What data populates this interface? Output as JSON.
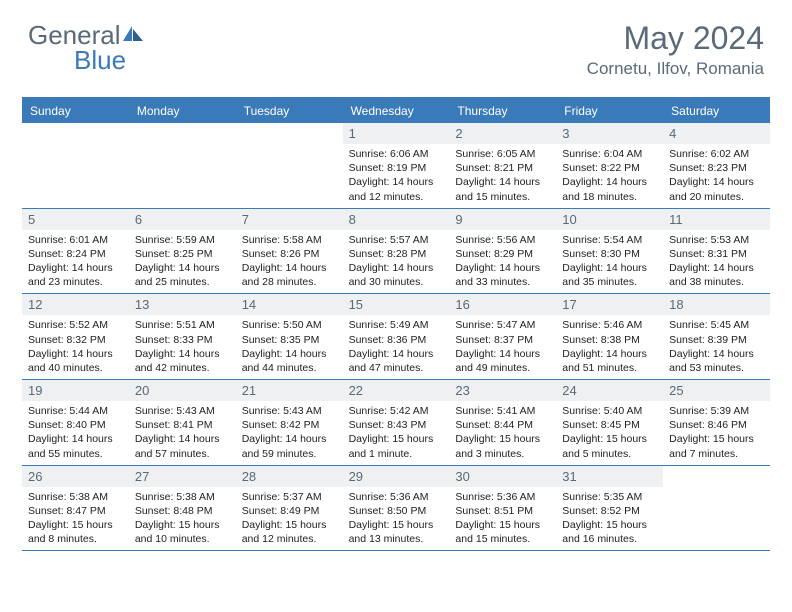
{
  "logo": {
    "general": "General",
    "blue": "Blue"
  },
  "title": "May 2024",
  "location": "Cornetu, Ilfov, Romania",
  "colors": {
    "brand_blue": "#3a7ab8",
    "header_text": "#5a6a78",
    "cell_num_bg": "#eef0f2",
    "body_text": "#222222",
    "white": "#ffffff"
  },
  "day_headers": [
    "Sunday",
    "Monday",
    "Tuesday",
    "Wednesday",
    "Thursday",
    "Friday",
    "Saturday"
  ],
  "weeks": [
    [
      null,
      null,
      null,
      {
        "n": "1",
        "sr": "Sunrise: 6:06 AM",
        "ss": "Sunset: 8:19 PM",
        "d1": "Daylight: 14 hours",
        "d2": "and 12 minutes."
      },
      {
        "n": "2",
        "sr": "Sunrise: 6:05 AM",
        "ss": "Sunset: 8:21 PM",
        "d1": "Daylight: 14 hours",
        "d2": "and 15 minutes."
      },
      {
        "n": "3",
        "sr": "Sunrise: 6:04 AM",
        "ss": "Sunset: 8:22 PM",
        "d1": "Daylight: 14 hours",
        "d2": "and 18 minutes."
      },
      {
        "n": "4",
        "sr": "Sunrise: 6:02 AM",
        "ss": "Sunset: 8:23 PM",
        "d1": "Daylight: 14 hours",
        "d2": "and 20 minutes."
      }
    ],
    [
      {
        "n": "5",
        "sr": "Sunrise: 6:01 AM",
        "ss": "Sunset: 8:24 PM",
        "d1": "Daylight: 14 hours",
        "d2": "and 23 minutes."
      },
      {
        "n": "6",
        "sr": "Sunrise: 5:59 AM",
        "ss": "Sunset: 8:25 PM",
        "d1": "Daylight: 14 hours",
        "d2": "and 25 minutes."
      },
      {
        "n": "7",
        "sr": "Sunrise: 5:58 AM",
        "ss": "Sunset: 8:26 PM",
        "d1": "Daylight: 14 hours",
        "d2": "and 28 minutes."
      },
      {
        "n": "8",
        "sr": "Sunrise: 5:57 AM",
        "ss": "Sunset: 8:28 PM",
        "d1": "Daylight: 14 hours",
        "d2": "and 30 minutes."
      },
      {
        "n": "9",
        "sr": "Sunrise: 5:56 AM",
        "ss": "Sunset: 8:29 PM",
        "d1": "Daylight: 14 hours",
        "d2": "and 33 minutes."
      },
      {
        "n": "10",
        "sr": "Sunrise: 5:54 AM",
        "ss": "Sunset: 8:30 PM",
        "d1": "Daylight: 14 hours",
        "d2": "and 35 minutes."
      },
      {
        "n": "11",
        "sr": "Sunrise: 5:53 AM",
        "ss": "Sunset: 8:31 PM",
        "d1": "Daylight: 14 hours",
        "d2": "and 38 minutes."
      }
    ],
    [
      {
        "n": "12",
        "sr": "Sunrise: 5:52 AM",
        "ss": "Sunset: 8:32 PM",
        "d1": "Daylight: 14 hours",
        "d2": "and 40 minutes."
      },
      {
        "n": "13",
        "sr": "Sunrise: 5:51 AM",
        "ss": "Sunset: 8:33 PM",
        "d1": "Daylight: 14 hours",
        "d2": "and 42 minutes."
      },
      {
        "n": "14",
        "sr": "Sunrise: 5:50 AM",
        "ss": "Sunset: 8:35 PM",
        "d1": "Daylight: 14 hours",
        "d2": "and 44 minutes."
      },
      {
        "n": "15",
        "sr": "Sunrise: 5:49 AM",
        "ss": "Sunset: 8:36 PM",
        "d1": "Daylight: 14 hours",
        "d2": "and 47 minutes."
      },
      {
        "n": "16",
        "sr": "Sunrise: 5:47 AM",
        "ss": "Sunset: 8:37 PM",
        "d1": "Daylight: 14 hours",
        "d2": "and 49 minutes."
      },
      {
        "n": "17",
        "sr": "Sunrise: 5:46 AM",
        "ss": "Sunset: 8:38 PM",
        "d1": "Daylight: 14 hours",
        "d2": "and 51 minutes."
      },
      {
        "n": "18",
        "sr": "Sunrise: 5:45 AM",
        "ss": "Sunset: 8:39 PM",
        "d1": "Daylight: 14 hours",
        "d2": "and 53 minutes."
      }
    ],
    [
      {
        "n": "19",
        "sr": "Sunrise: 5:44 AM",
        "ss": "Sunset: 8:40 PM",
        "d1": "Daylight: 14 hours",
        "d2": "and 55 minutes."
      },
      {
        "n": "20",
        "sr": "Sunrise: 5:43 AM",
        "ss": "Sunset: 8:41 PM",
        "d1": "Daylight: 14 hours",
        "d2": "and 57 minutes."
      },
      {
        "n": "21",
        "sr": "Sunrise: 5:43 AM",
        "ss": "Sunset: 8:42 PM",
        "d1": "Daylight: 14 hours",
        "d2": "and 59 minutes."
      },
      {
        "n": "22",
        "sr": "Sunrise: 5:42 AM",
        "ss": "Sunset: 8:43 PM",
        "d1": "Daylight: 15 hours",
        "d2": "and 1 minute."
      },
      {
        "n": "23",
        "sr": "Sunrise: 5:41 AM",
        "ss": "Sunset: 8:44 PM",
        "d1": "Daylight: 15 hours",
        "d2": "and 3 minutes."
      },
      {
        "n": "24",
        "sr": "Sunrise: 5:40 AM",
        "ss": "Sunset: 8:45 PM",
        "d1": "Daylight: 15 hours",
        "d2": "and 5 minutes."
      },
      {
        "n": "25",
        "sr": "Sunrise: 5:39 AM",
        "ss": "Sunset: 8:46 PM",
        "d1": "Daylight: 15 hours",
        "d2": "and 7 minutes."
      }
    ],
    [
      {
        "n": "26",
        "sr": "Sunrise: 5:38 AM",
        "ss": "Sunset: 8:47 PM",
        "d1": "Daylight: 15 hours",
        "d2": "and 8 minutes."
      },
      {
        "n": "27",
        "sr": "Sunrise: 5:38 AM",
        "ss": "Sunset: 8:48 PM",
        "d1": "Daylight: 15 hours",
        "d2": "and 10 minutes."
      },
      {
        "n": "28",
        "sr": "Sunrise: 5:37 AM",
        "ss": "Sunset: 8:49 PM",
        "d1": "Daylight: 15 hours",
        "d2": "and 12 minutes."
      },
      {
        "n": "29",
        "sr": "Sunrise: 5:36 AM",
        "ss": "Sunset: 8:50 PM",
        "d1": "Daylight: 15 hours",
        "d2": "and 13 minutes."
      },
      {
        "n": "30",
        "sr": "Sunrise: 5:36 AM",
        "ss": "Sunset: 8:51 PM",
        "d1": "Daylight: 15 hours",
        "d2": "and 15 minutes."
      },
      {
        "n": "31",
        "sr": "Sunrise: 5:35 AM",
        "ss": "Sunset: 8:52 PM",
        "d1": "Daylight: 15 hours",
        "d2": "and 16 minutes."
      },
      null
    ]
  ]
}
